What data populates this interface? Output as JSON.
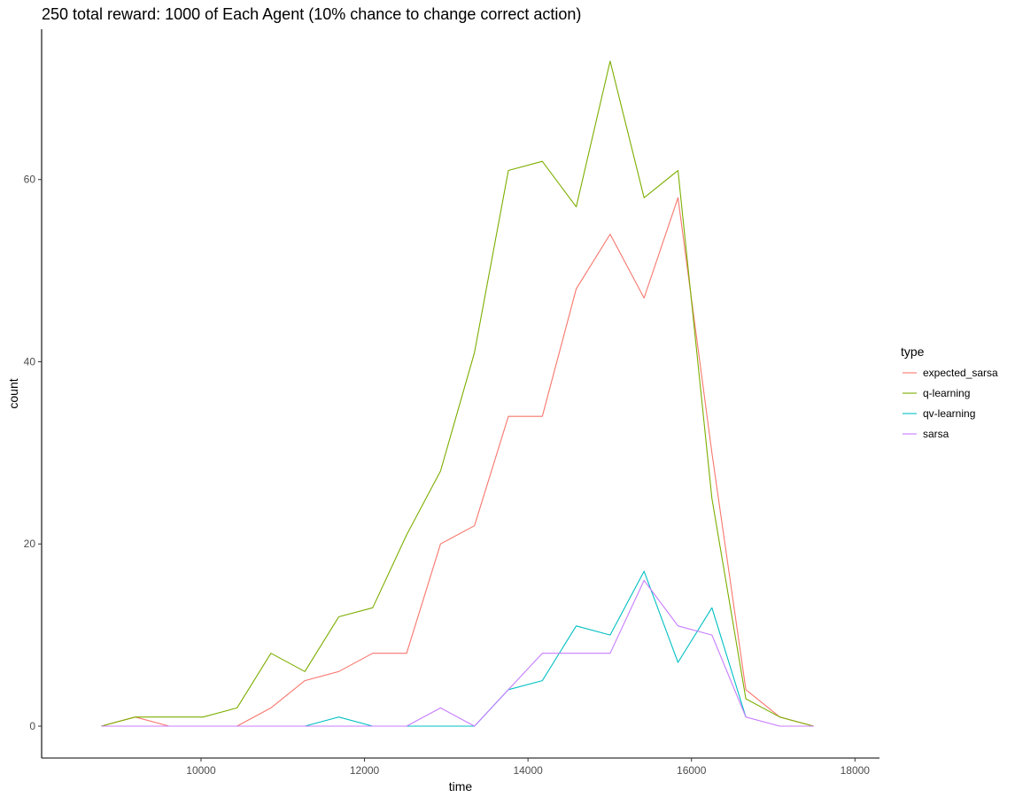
{
  "chart_data": {
    "type": "line",
    "title": "250 total reward: 1000 of Each Agent (10% chance to change correct action)",
    "xlabel": "time",
    "ylabel": "count",
    "xlim": [
      8050,
      18300
    ],
    "ylim": [
      -3.5,
      76.5
    ],
    "xticks": [
      10000,
      12000,
      14000,
      16000,
      18000
    ],
    "yticks": [
      0,
      20,
      40,
      60
    ],
    "grid": false,
    "legend": {
      "title": "type",
      "position": "right"
    },
    "x": [
      8780,
      9195,
      9610,
      10025,
      10440,
      10855,
      11270,
      11685,
      12100,
      12515,
      12930,
      13345,
      13760,
      14175,
      14590,
      15005,
      15420,
      15835,
      16250,
      16665,
      17080,
      17495
    ],
    "series": [
      {
        "name": "expected_sarsa",
        "color": "#F8766D",
        "values": [
          0,
          1,
          0,
          0,
          0,
          2,
          5,
          6,
          8,
          8,
          20,
          22,
          34,
          34,
          48,
          54,
          47,
          58,
          30,
          4,
          1,
          0
        ]
      },
      {
        "name": "q-learning",
        "color": "#7CAE00",
        "values": [
          0,
          1,
          1,
          1,
          2,
          8,
          6,
          12,
          13,
          21,
          28,
          41,
          61,
          62,
          57,
          73,
          58,
          61,
          25,
          3,
          1,
          0
        ]
      },
      {
        "name": "qv-learning",
        "color": "#00BFC4",
        "values": [
          null,
          null,
          null,
          null,
          null,
          null,
          0,
          1,
          0,
          0,
          0,
          0,
          4,
          5,
          11,
          10,
          17,
          7,
          13,
          1,
          null,
          null
        ]
      },
      {
        "name": "sarsa",
        "color": "#C77CFF",
        "values": [
          0,
          0,
          0,
          0,
          0,
          0,
          0,
          0,
          0,
          0,
          2,
          0,
          4,
          8,
          8,
          8,
          16,
          11,
          10,
          1,
          0,
          0
        ]
      }
    ]
  }
}
